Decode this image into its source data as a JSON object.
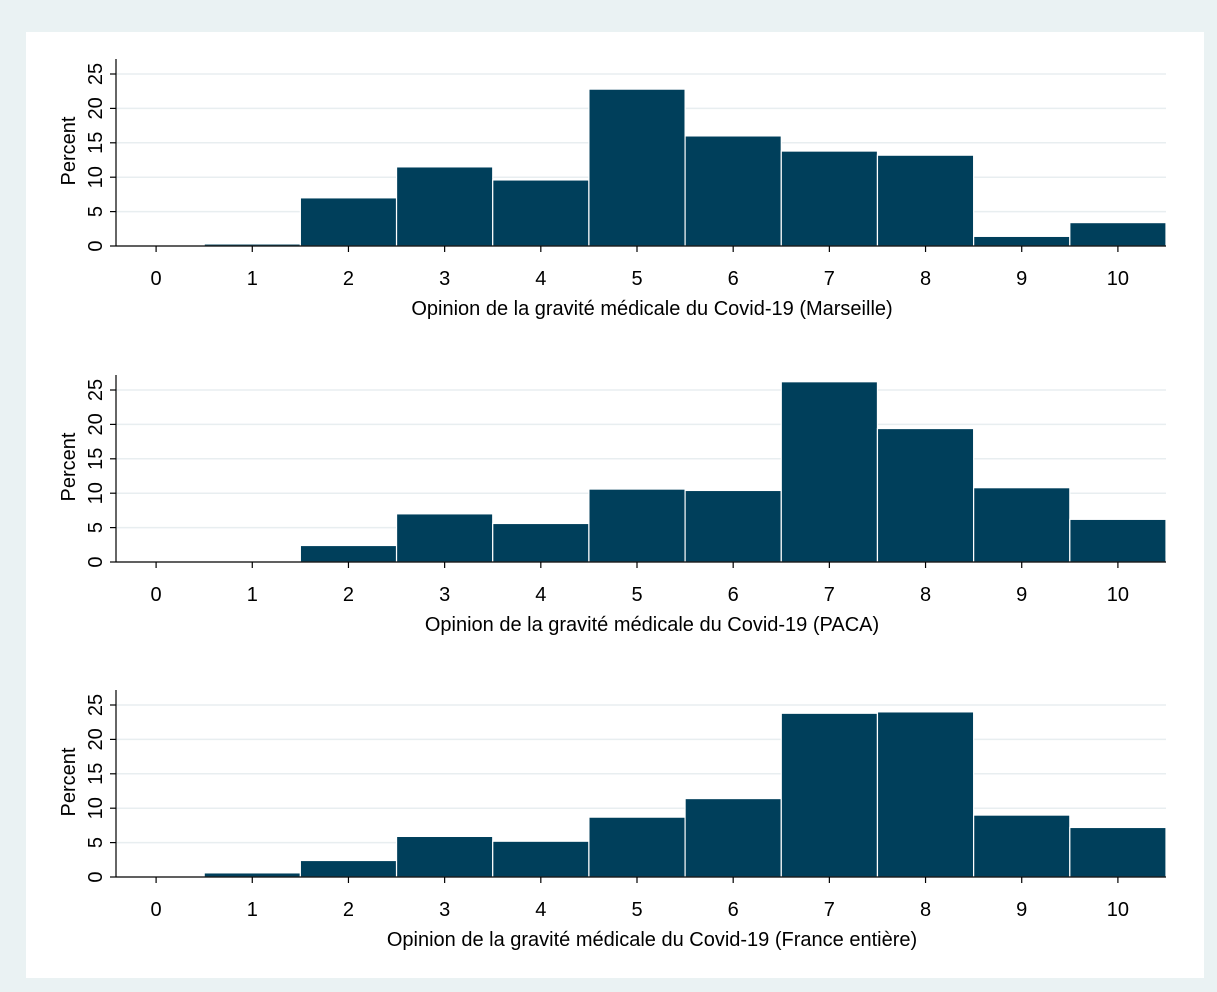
{
  "colors": {
    "bar_fill": "#003f5b",
    "bar_edge": "#ffffff",
    "grid": "#e8eef0",
    "axis": "#000000"
  },
  "chart_data": [
    {
      "type": "bar",
      "title": "",
      "xlabel": "Opinion de la gravité médicale du Covid-19 (Marseille)",
      "ylabel": "Percent",
      "categories": [
        0,
        1,
        2,
        3,
        4,
        5,
        6,
        7,
        8,
        9,
        10
      ],
      "values": [
        0,
        0.3,
        7,
        11.5,
        9.6,
        22.8,
        16,
        13.8,
        13.2,
        1.4,
        3.4
      ],
      "xticks": [
        "0",
        "1",
        "2",
        "3",
        "4",
        "5",
        "6",
        "7",
        "8",
        "9",
        "10"
      ],
      "yticks": [
        "0",
        "5",
        "10",
        "15",
        "20",
        "25"
      ],
      "ylim": [
        0,
        25
      ],
      "grid": true
    },
    {
      "type": "bar",
      "title": "",
      "xlabel": "Opinion de la gravité médicale du Covid-19 (PACA)",
      "ylabel": "Percent",
      "categories": [
        0,
        1,
        2,
        3,
        4,
        5,
        6,
        7,
        8,
        9,
        10
      ],
      "values": [
        0,
        0,
        2.4,
        7,
        5.6,
        10.6,
        10.4,
        26.2,
        19.4,
        10.8,
        6.2
      ],
      "xticks": [
        "0",
        "1",
        "2",
        "3",
        "4",
        "5",
        "6",
        "7",
        "8",
        "9",
        "10"
      ],
      "yticks": [
        "0",
        "5",
        "10",
        "15",
        "20",
        "25"
      ],
      "ylim": [
        0,
        25
      ],
      "grid": true
    },
    {
      "type": "bar",
      "title": "",
      "xlabel": "Opinion de la gravité médicale du Covid-19 (France entière)",
      "ylabel": "Percent",
      "categories": [
        0,
        1,
        2,
        3,
        4,
        5,
        6,
        7,
        8,
        9,
        10
      ],
      "values": [
        0,
        0.6,
        2.4,
        5.9,
        5.2,
        8.7,
        11.4,
        23.8,
        24,
        9,
        7.2
      ],
      "xticks": [
        "0",
        "1",
        "2",
        "3",
        "4",
        "5",
        "6",
        "7",
        "8",
        "9",
        "10"
      ],
      "yticks": [
        "0",
        "5",
        "10",
        "15",
        "20",
        "25"
      ],
      "ylim": [
        0,
        25
      ],
      "grid": true
    }
  ]
}
